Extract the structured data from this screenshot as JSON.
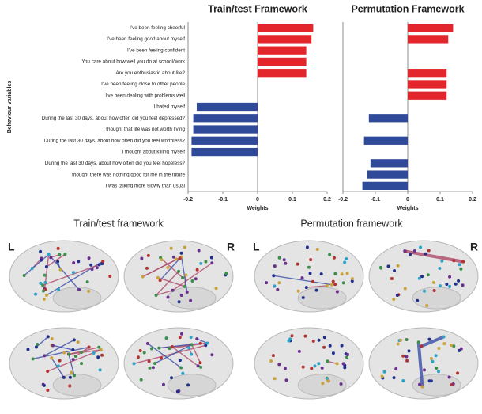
{
  "chart_data": [
    {
      "type": "barh",
      "title": "Train/test Framework",
      "ylabel": "Behaviour variables",
      "xlabel": "Weights",
      "categories": [
        "I've been feeling cheerful",
        "I've been feeling good about myself",
        "I've been feeling confident",
        "You care about how well you do at school/work",
        "Are you enthusiastic about life?",
        "I've been feeling close to other people",
        "I've been dealing with problems well",
        "I hated myself",
        "During the last 30 days, about how often did you feel depressed?",
        "I thought that life was not worth living",
        "During the last 30 days, about how often did you feel worthless?",
        "I thought about killing myself",
        "During the last 30 days, about how often did you feel hopeless?",
        "I thought there was nothing good for me in the future",
        "I was talking more slowly than usual"
      ],
      "values": [
        0.16,
        0.155,
        0.14,
        0.14,
        0.14,
        null,
        null,
        -0.175,
        -0.185,
        -0.185,
        -0.19,
        -0.19,
        null,
        null,
        null
      ],
      "xlim": [
        -0.2,
        0.2
      ],
      "xticks": [
        -0.2,
        -0.1,
        0,
        0.1,
        0.2
      ],
      "color_positive": "#e3262b",
      "color_negative": "#2f4a98"
    },
    {
      "type": "barh",
      "title": "Permutation Framework",
      "xlabel": "Weights",
      "values": [
        0.14,
        0.125,
        null,
        null,
        0.12,
        0.12,
        0.12,
        null,
        -0.12,
        null,
        -0.135,
        null,
        -0.115,
        -0.125,
        -0.14
      ],
      "xlim": [
        -0.2,
        0.2
      ],
      "xticks": [
        -0.2,
        -0.1,
        0,
        0.1,
        0.2
      ],
      "color_positive": "#e3262b",
      "color_negative": "#2f4a98"
    }
  ],
  "panels": [
    {
      "title": "Train/test framework",
      "left": "L",
      "right": "R"
    },
    {
      "title": "Permutation framework",
      "left": "L",
      "right": "R"
    }
  ]
}
